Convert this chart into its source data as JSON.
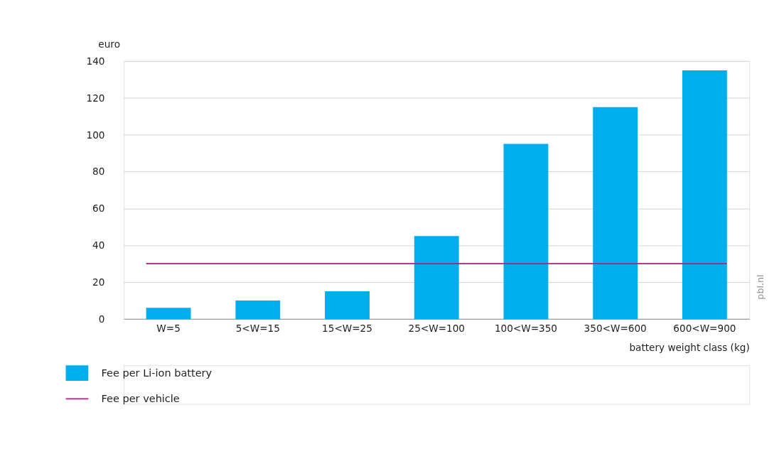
{
  "chart_data": {
    "type": "bar",
    "xlabel": "battery weight class (kg)",
    "ylabel": "euro",
    "categories": [
      "W=5",
      "5<W=15",
      "15<W=25",
      "25<W=100",
      "100<W=350",
      "350<W=600",
      "600<W=900"
    ],
    "series": [
      {
        "name": "Fee per Li-ion battery",
        "color": "#00aeef",
        "values": [
          6,
          10,
          15,
          45,
          95,
          115,
          135
        ]
      }
    ],
    "ref_lines": [
      {
        "axis": "y",
        "value": 30,
        "label": "Fee per vehicle",
        "color": "#c8127a"
      }
    ],
    "ylim": [
      0,
      140
    ],
    "yticks": [
      0,
      20,
      40,
      60,
      80,
      100,
      120,
      140
    ],
    "grid": "y",
    "legend": "bottom",
    "annotations": [
      "pbl.nl"
    ]
  }
}
